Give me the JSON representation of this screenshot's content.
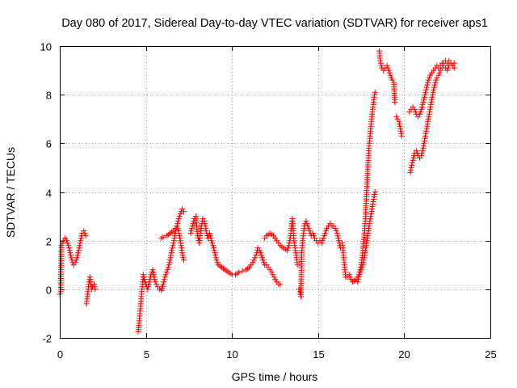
{
  "chart_data": {
    "type": "scatter",
    "title": "Day 080 of 2017, Sidereal Day-to-day VTEC variation (SDTVAR) for receiver aps1",
    "xlabel": "GPS time / hours",
    "ylabel": "SDTVAR / TECUs",
    "xlim": [
      0,
      25
    ],
    "ylim": [
      -2,
      10
    ],
    "xticks": [
      "0",
      "5",
      "10",
      "15",
      "20",
      "25"
    ],
    "yticks": [
      "-2",
      "0",
      "2",
      "4",
      "6",
      "8",
      "10"
    ],
    "grid": true,
    "marker": "+",
    "color": "#ff0000",
    "series": [
      {
        "name": "SDTVAR",
        "segments": [
          [
            [
              0.0,
              -0.2
            ],
            [
              0.05,
              -0.1
            ],
            [
              0.1,
              1.8
            ],
            [
              0.2,
              2.0
            ],
            [
              0.3,
              2.1
            ],
            [
              0.4,
              2.0
            ],
            [
              0.5,
              1.8
            ],
            [
              0.6,
              1.5
            ],
            [
              0.7,
              1.2
            ],
            [
              0.8,
              1.0
            ],
            [
              0.9,
              1.1
            ],
            [
              1.0,
              1.3
            ],
            [
              1.1,
              1.6
            ],
            [
              1.2,
              2.0
            ],
            [
              1.3,
              2.3
            ],
            [
              1.4,
              2.4
            ],
            [
              1.5,
              2.2
            ]
          ],
          [
            [
              1.55,
              -0.6
            ],
            [
              1.6,
              -0.3
            ],
            [
              1.65,
              0.0
            ],
            [
              1.7,
              0.3
            ],
            [
              1.75,
              0.5
            ],
            [
              1.8,
              0.2
            ],
            [
              1.85,
              0.0
            ],
            [
              1.9,
              0.1
            ],
            [
              2.0,
              0.2
            ],
            [
              2.05,
              0.0
            ]
          ],
          [
            [
              4.55,
              -1.75
            ],
            [
              4.6,
              -1.4
            ],
            [
              4.65,
              -1.0
            ],
            [
              4.7,
              -0.6
            ],
            [
              4.75,
              -0.2
            ],
            [
              4.8,
              0.2
            ],
            [
              4.85,
              0.6
            ],
            [
              4.9,
              0.4
            ],
            [
              5.0,
              0.2
            ],
            [
              5.1,
              0.0
            ],
            [
              5.2,
              0.3
            ],
            [
              5.3,
              0.6
            ],
            [
              5.4,
              0.8
            ],
            [
              5.5,
              0.4
            ],
            [
              5.6,
              0.2
            ],
            [
              5.7,
              0.1
            ],
            [
              5.8,
              0.0
            ],
            [
              5.9,
              -0.05
            ],
            [
              6.0,
              0.2
            ],
            [
              6.1,
              0.5
            ],
            [
              6.2,
              0.7
            ],
            [
              6.3,
              0.9
            ],
            [
              6.4,
              1.2
            ],
            [
              6.5,
              1.6
            ],
            [
              6.6,
              1.9
            ],
            [
              6.7,
              2.3
            ],
            [
              6.8,
              2.6
            ],
            [
              6.9,
              2.9
            ],
            [
              7.0,
              3.1
            ],
            [
              7.1,
              3.3
            ],
            [
              7.2,
              3.2
            ]
          ],
          [
            [
              5.9,
              2.1
            ],
            [
              6.0,
              2.15
            ],
            [
              6.2,
              2.2
            ],
            [
              6.4,
              2.3
            ],
            [
              6.6,
              2.4
            ],
            [
              6.8,
              2.6
            ],
            [
              6.9,
              2.4
            ],
            [
              7.0,
              2.0
            ],
            [
              7.1,
              1.5
            ],
            [
              7.2,
              1.2
            ]
          ],
          [
            [
              7.6,
              2.3
            ],
            [
              7.7,
              2.6
            ],
            [
              7.8,
              2.9
            ],
            [
              7.9,
              3.0
            ],
            [
              8.0,
              2.2
            ],
            [
              8.1,
              1.9
            ],
            [
              8.2,
              2.5
            ],
            [
              8.3,
              2.9
            ],
            [
              8.4,
              2.8
            ],
            [
              8.5,
              2.4
            ],
            [
              8.6,
              2.1
            ],
            [
              8.7,
              2.3
            ],
            [
              8.8,
              2.0
            ],
            [
              8.9,
              1.8
            ],
            [
              9.0,
              1.5
            ],
            [
              9.1,
              1.2
            ],
            [
              9.2,
              1.0
            ],
            [
              9.4,
              0.9
            ],
            [
              9.6,
              0.8
            ],
            [
              9.8,
              0.7
            ],
            [
              10.0,
              0.6
            ],
            [
              10.2,
              0.6
            ],
            [
              10.4,
              0.7
            ],
            [
              10.6,
              0.75
            ],
            [
              10.8,
              0.8
            ],
            [
              11.0,
              0.9
            ],
            [
              11.2,
              1.1
            ],
            [
              11.4,
              1.4
            ],
            [
              11.5,
              1.7
            ],
            [
              11.6,
              1.6
            ],
            [
              11.8,
              1.2
            ],
            [
              11.9,
              1.0
            ],
            [
              12.0,
              1.0
            ],
            [
              12.1,
              0.9
            ],
            [
              12.3,
              0.7
            ],
            [
              12.5,
              0.4
            ],
            [
              12.7,
              0.2
            ],
            [
              12.8,
              0.2
            ]
          ],
          [
            [
              11.9,
              2.1
            ],
            [
              12.0,
              2.2
            ],
            [
              12.2,
              2.3
            ],
            [
              12.4,
              2.2
            ],
            [
              12.6,
              2.0
            ],
            [
              12.8,
              1.8
            ],
            [
              13.0,
              1.7
            ],
            [
              13.2,
              1.6
            ],
            [
              13.3,
              1.8
            ],
            [
              13.4,
              2.2
            ],
            [
              13.45,
              2.6
            ],
            [
              13.5,
              2.9
            ],
            [
              13.55,
              2.5
            ],
            [
              13.6,
              2.0
            ],
            [
              13.7,
              1.5
            ],
            [
              13.8,
              1.0
            ]
          ],
          [
            [
              13.9,
              0.0
            ],
            [
              14.0,
              -0.3
            ],
            [
              14.05,
              1.5
            ],
            [
              14.1,
              2.0
            ],
            [
              14.2,
              2.6
            ],
            [
              14.3,
              2.8
            ],
            [
              14.4,
              2.6
            ],
            [
              14.5,
              2.4
            ],
            [
              14.6,
              2.2
            ],
            [
              14.7,
              2.3
            ],
            [
              14.8,
              2.1
            ],
            [
              14.9,
              2.0
            ],
            [
              15.0,
              1.9
            ],
            [
              15.1,
              2.0
            ],
            [
              15.2,
              1.9
            ],
            [
              15.3,
              2.1
            ],
            [
              15.4,
              2.3
            ],
            [
              15.5,
              2.5
            ],
            [
              15.6,
              2.6
            ],
            [
              15.7,
              2.7
            ],
            [
              15.8,
              2.6
            ],
            [
              15.9,
              2.6
            ],
            [
              16.0,
              2.5
            ],
            [
              16.1,
              2.3
            ],
            [
              16.2,
              2.0
            ],
            [
              16.3,
              1.7
            ]
          ],
          [
            [
              16.4,
              1.9
            ],
            [
              16.45,
              1.6
            ],
            [
              16.5,
              1.2
            ],
            [
              16.55,
              0.8
            ],
            [
              16.6,
              0.5
            ],
            [
              16.7,
              0.5
            ],
            [
              16.8,
              0.6
            ],
            [
              16.9,
              0.4
            ],
            [
              17.0,
              0.3
            ],
            [
              17.1,
              0.35
            ],
            [
              17.2,
              0.4
            ],
            [
              17.3,
              0.5
            ],
            [
              17.4,
              0.6
            ],
            [
              17.5,
              0.8
            ],
            [
              17.6,
              1.0
            ],
            [
              17.7,
              1.4
            ],
            [
              17.8,
              1.8
            ],
            [
              17.9,
              2.3
            ],
            [
              18.0,
              2.8
            ],
            [
              18.1,
              3.2
            ],
            [
              18.2,
              3.6
            ],
            [
              18.3,
              4.0
            ]
          ],
          [
            [
              17.3,
              0.3
            ],
            [
              17.35,
              0.5
            ],
            [
              17.4,
              0.7
            ],
            [
              17.5,
              1.0
            ],
            [
              17.6,
              1.6
            ],
            [
              17.7,
              2.4
            ],
            [
              17.75,
              3.0
            ],
            [
              17.8,
              3.8
            ],
            [
              17.85,
              4.5
            ],
            [
              17.9,
              5.2
            ],
            [
              17.95,
              5.8
            ],
            [
              18.0,
              6.2
            ],
            [
              18.05,
              6.6
            ],
            [
              18.1,
              7.0
            ],
            [
              18.15,
              7.3
            ],
            [
              18.2,
              7.6
            ],
            [
              18.25,
              7.9
            ],
            [
              18.3,
              8.1
            ]
          ],
          [
            [
              18.55,
              9.8
            ],
            [
              18.6,
              9.4
            ],
            [
              18.7,
              9.1
            ],
            [
              18.8,
              9.0
            ],
            [
              18.9,
              9.1
            ],
            [
              19.0,
              9.2
            ],
            [
              19.1,
              9.0
            ],
            [
              19.2,
              8.8
            ],
            [
              19.3,
              8.6
            ],
            [
              19.4,
              8.5
            ],
            [
              19.45,
              7.7
            ]
          ],
          [
            [
              19.55,
              7.1
            ],
            [
              19.6,
              7.0
            ],
            [
              19.7,
              6.9
            ],
            [
              19.8,
              6.5
            ],
            [
              19.85,
              6.3
            ]
          ],
          [
            [
              20.3,
              7.3
            ],
            [
              20.4,
              7.4
            ],
            [
              20.5,
              7.5
            ],
            [
              20.6,
              7.4
            ],
            [
              20.7,
              7.2
            ],
            [
              20.8,
              7.1
            ],
            [
              20.9,
              7.2
            ],
            [
              21.0,
              7.4
            ],
            [
              21.1,
              7.7
            ],
            [
              21.2,
              8.0
            ],
            [
              21.3,
              8.3
            ],
            [
              21.4,
              8.6
            ],
            [
              21.5,
              8.8
            ],
            [
              21.6,
              8.9
            ],
            [
              21.7,
              9.0
            ],
            [
              21.8,
              9.1
            ],
            [
              21.9,
              9.2
            ],
            [
              22.0,
              9.1
            ],
            [
              22.1,
              9.2
            ],
            [
              22.2,
              9.3
            ],
            [
              22.3,
              9.3
            ],
            [
              22.4,
              9.4
            ],
            [
              22.5,
              9.3
            ],
            [
              22.6,
              9.4
            ],
            [
              22.7,
              9.3
            ],
            [
              22.8,
              9.2
            ],
            [
              22.9,
              9.3
            ]
          ],
          [
            [
              20.35,
              4.8
            ],
            [
              20.4,
              5.0
            ],
            [
              20.5,
              5.3
            ],
            [
              20.6,
              5.6
            ],
            [
              20.7,
              5.7
            ],
            [
              20.8,
              5.5
            ],
            [
              20.9,
              5.4
            ],
            [
              21.0,
              5.5
            ],
            [
              21.1,
              5.8
            ],
            [
              21.2,
              6.2
            ],
            [
              21.3,
              6.6
            ],
            [
              21.4,
              7.0
            ],
            [
              21.5,
              7.4
            ],
            [
              21.6,
              7.8
            ],
            [
              21.7,
              8.2
            ],
            [
              21.8,
              8.5
            ],
            [
              21.9,
              8.7
            ],
            [
              22.0,
              8.8
            ],
            [
              22.1,
              9.0
            ],
            [
              22.2,
              9.1
            ],
            [
              22.3,
              9.2
            ],
            [
              22.4,
              9.1
            ],
            [
              22.5,
              9.0
            ],
            [
              22.6,
              9.2
            ],
            [
              22.7,
              9.3
            ],
            [
              22.8,
              9.2
            ],
            [
              22.9,
              9.1
            ]
          ]
        ]
      }
    ]
  }
}
